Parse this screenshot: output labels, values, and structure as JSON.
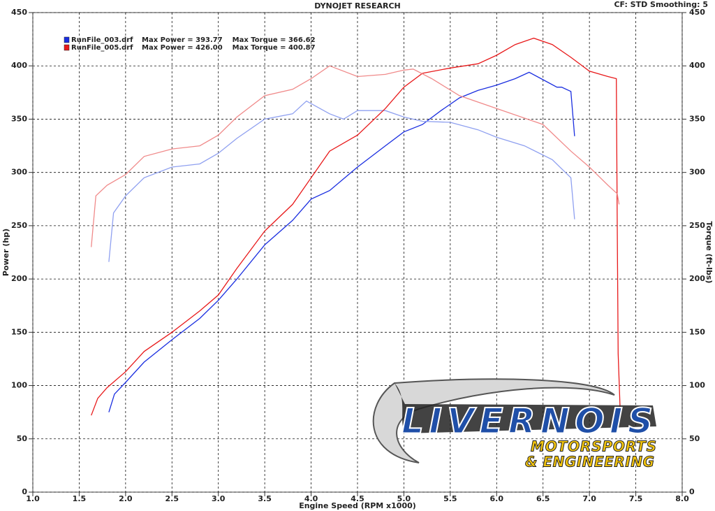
{
  "chart_data": {
    "type": "line",
    "title": "DYNOJET RESEARCH",
    "subtitle": "CF: STD  Smoothing: 5",
    "x_label": "Engine Speed (RPM x1000)",
    "y_label": "Power (hp)",
    "y2_label": "Torque (ft-lbs)",
    "xlim": [
      1,
      8
    ],
    "xticks": [
      {
        "value": 1,
        "label": "1.0"
      },
      {
        "value": 1.5,
        "label": "1.5"
      },
      {
        "value": 2,
        "label": "2.0"
      },
      {
        "value": 2.5,
        "label": "2.5"
      },
      {
        "value": 3,
        "label": "3.0"
      },
      {
        "value": 3.5,
        "label": "3.5"
      },
      {
        "value": 4,
        "label": "4.0"
      },
      {
        "value": 4.5,
        "label": "4.5"
      },
      {
        "value": 5,
        "label": "5.0"
      },
      {
        "value": 5.5,
        "label": "5.5"
      },
      {
        "value": 6,
        "label": "6.0"
      },
      {
        "value": 6.5,
        "label": "6.5"
      },
      {
        "value": 7,
        "label": "7.0"
      },
      {
        "value": 7.5,
        "label": "7.5"
      },
      {
        "value": 8,
        "label": "8.0"
      }
    ],
    "ylim": [
      0,
      450
    ],
    "yticks": [
      0,
      50,
      100,
      150,
      200,
      250,
      300,
      350,
      400,
      450
    ],
    "y2lim": [
      0,
      450
    ],
    "y2ticks": [
      0,
      50,
      100,
      150,
      200,
      250,
      300,
      350,
      400,
      450
    ],
    "grid": true,
    "legend": [
      {
        "name": "RunFile_003.drf",
        "stats": "Max Power = 393.77    Max Torque = 366.62",
        "color": "#1a2ee0"
      },
      {
        "name": "RunFile_005.drf",
        "stats": "Max Power = 426.00    Max Torque = 400.87",
        "color": "#e8191a"
      }
    ],
    "logo": {
      "name": "LIVERNOIS",
      "line1": "MOTORSPORTS",
      "line2": "& ENGINEERING"
    },
    "series": [
      {
        "color": "#1a2ee0",
        "axis": "y",
        "x": [
          1.82,
          1.88,
          2.0,
          2.2,
          2.5,
          2.8,
          3.0,
          3.2,
          3.5,
          3.8,
          4.0,
          4.2,
          4.5,
          4.8,
          5.0,
          5.2,
          5.4,
          5.6,
          5.8,
          6.0,
          6.2,
          6.35,
          6.5,
          6.65,
          6.7,
          6.8,
          6.84
        ],
        "values": [
          75,
          92,
          103,
          122,
          143,
          163,
          180,
          200,
          232,
          255,
          275,
          283,
          305,
          325,
          338,
          345,
          358,
          370,
          377,
          382,
          388,
          394,
          387,
          380,
          380,
          376,
          334
        ]
      },
      {
        "color": "#8fa0f0",
        "axis": "y2",
        "x": [
          1.82,
          1.87,
          2.0,
          2.2,
          2.5,
          2.8,
          3.0,
          3.2,
          3.5,
          3.8,
          3.95,
          4.2,
          4.35,
          4.5,
          4.8,
          5.0,
          5.2,
          5.5,
          5.8,
          6.0,
          6.3,
          6.6,
          6.8,
          6.84
        ],
        "values": [
          216,
          262,
          278,
          295,
          305,
          308,
          318,
          332,
          350,
          355,
          367,
          355,
          350,
          358,
          358,
          352,
          348,
          347,
          340,
          333,
          325,
          312,
          295,
          256
        ]
      },
      {
        "color": "#e8191a",
        "axis": "y",
        "x": [
          1.63,
          1.7,
          1.8,
          2.0,
          2.2,
          2.5,
          2.8,
          3.0,
          3.2,
          3.5,
          3.8,
          4.0,
          4.2,
          4.5,
          4.8,
          5.0,
          5.2,
          5.5,
          5.8,
          6.0,
          6.2,
          6.4,
          6.6,
          6.8,
          7.0,
          7.2,
          7.29,
          7.3,
          7.31,
          7.33
        ],
        "values": [
          72,
          88,
          98,
          113,
          132,
          150,
          170,
          185,
          210,
          245,
          270,
          295,
          320,
          335,
          360,
          380,
          393,
          398,
          402,
          410,
          420,
          426,
          420,
          408,
          395,
          390,
          388,
          250,
          130,
          80
        ]
      },
      {
        "color": "#f08a8a",
        "axis": "y2",
        "x": [
          1.63,
          1.68,
          1.8,
          2.0,
          2.2,
          2.5,
          2.8,
          3.0,
          3.2,
          3.5,
          3.8,
          4.0,
          4.2,
          4.5,
          4.8,
          5.0,
          5.1,
          5.3,
          5.6,
          6.0,
          6.5,
          6.8,
          7.0,
          7.2,
          7.3,
          7.32
        ],
        "values": [
          230,
          278,
          288,
          298,
          315,
          322,
          325,
          335,
          352,
          372,
          378,
          388,
          400,
          390,
          392,
          396,
          397,
          388,
          372,
          360,
          345,
          320,
          305,
          288,
          280,
          270
        ]
      }
    ]
  }
}
